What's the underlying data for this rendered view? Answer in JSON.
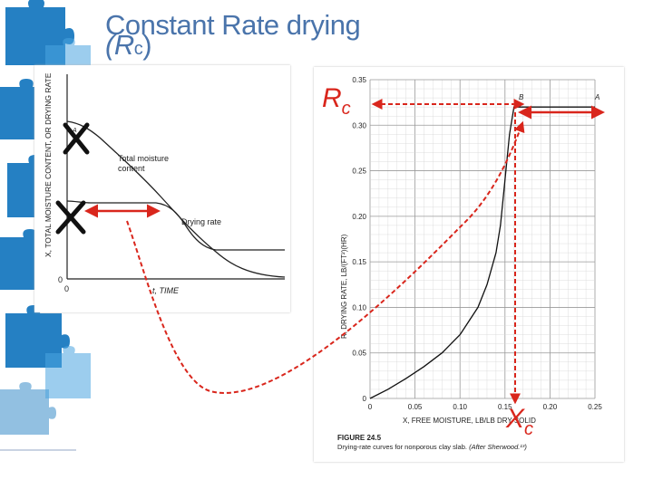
{
  "slide": {
    "title": "Constant Rate drying",
    "title_sub": "(R",
    "title_sub_index": "c",
    "title_sub_close": ")"
  },
  "left_figure": {
    "y_axis_label": "X, TOTAL MOISTURE CONTENT, OR DRYING RATE",
    "x_axis_label": "t, TIME",
    "origin_x_label": "0",
    "origin_y_label": "0",
    "point_label": "A",
    "curve_moisture_label_line1": "Total moisture",
    "curve_moisture_label_line2": "content",
    "curve_rate_label": "Drying rate"
  },
  "right_figure": {
    "y_axis_label": "R, DRYING RATE, LB/(FT²)(HR)",
    "x_axis_label": "X, FREE MOISTURE, LB/LB DRY SOLID",
    "figure_number": "FIGURE 24.5",
    "caption": "Drying-rate curves for nonporous clay slab.",
    "caption_credit": "(After Sherwood.¹³)",
    "point_b": "B",
    "point_a": "A",
    "y_ticks": [
      "0",
      "0.05",
      "0.10",
      "0.15",
      "0.20",
      "0.25",
      "0.30",
      "0.35"
    ],
    "x_ticks": [
      "0",
      "0.05",
      "0.10",
      "0.15",
      "0.20",
      "0.25"
    ]
  },
  "annotations": {
    "rc_letter": "R",
    "rc_sub": "c",
    "xc_letter": "X",
    "xc_sub": "c",
    "accent_red": "#d9261c",
    "cross_color": "#111111"
  },
  "chart_data": {
    "type": "line",
    "title": "",
    "xlabel": "X, FREE MOISTURE, LB/LB DRY SOLID",
    "ylabel": "R, DRYING RATE, LB/(FT²)(HR)",
    "xlim": [
      0,
      0.25
    ],
    "ylim": [
      0,
      0.35
    ],
    "grid": true,
    "series": [
      {
        "x": [
          0,
          0.02,
          0.04,
          0.06,
          0.08,
          0.1,
          0.12,
          0.13,
          0.14,
          0.145,
          0.15,
          0.155,
          0.16,
          0.2,
          0.25
        ],
        "y": [
          0,
          0.01,
          0.022,
          0.035,
          0.05,
          0.07,
          0.1,
          0.125,
          0.16,
          0.19,
          0.24,
          0.29,
          0.32,
          0.32,
          0.32
        ]
      }
    ]
  }
}
